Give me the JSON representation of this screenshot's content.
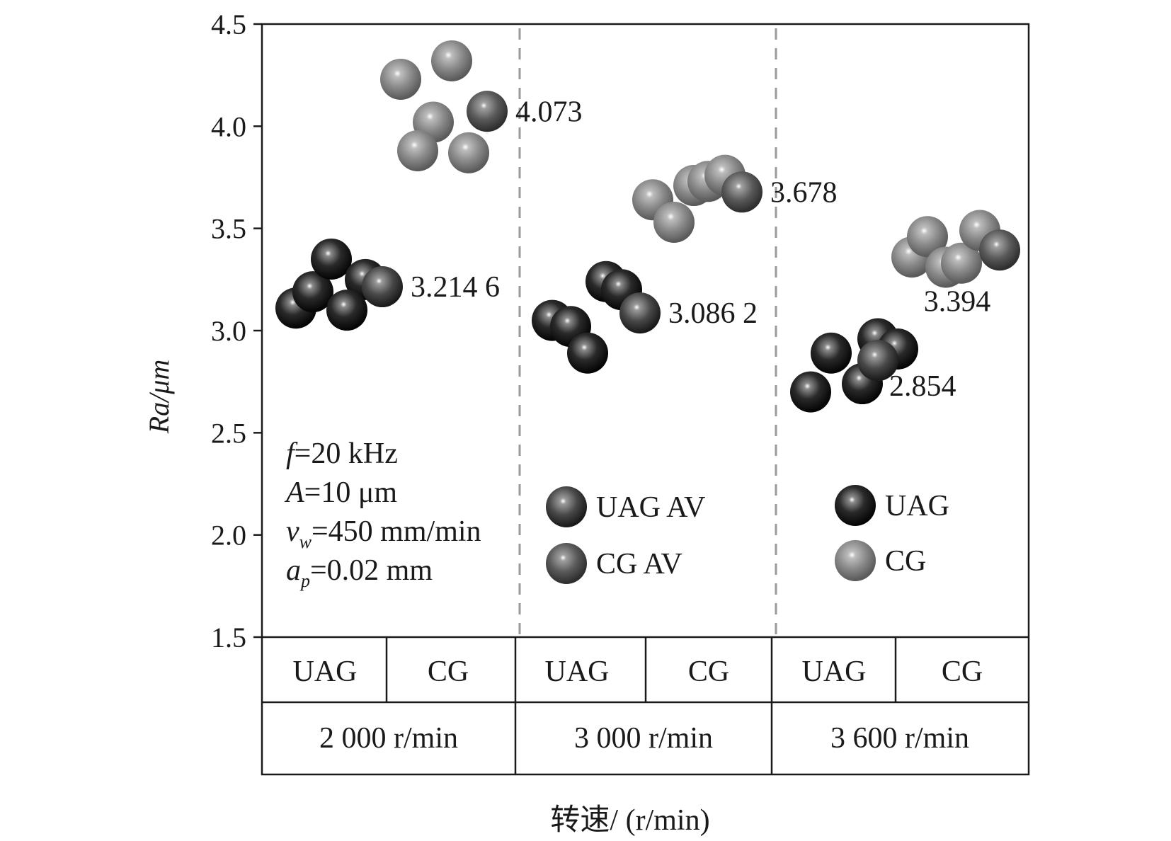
{
  "chart_data": {
    "type": "scatter",
    "ylabel": "Ra/μm",
    "xlabel": "转速/ (r/min)",
    "ylim": [
      1.5,
      4.5
    ],
    "yticks": [
      "4.5",
      "4.0",
      "3.5",
      "3.0",
      "2.5",
      "2.0",
      "1.5"
    ],
    "ytick_values": [
      4.5,
      4.0,
      3.5,
      3.0,
      2.5,
      2.0,
      1.5
    ],
    "grid": false,
    "groups": [
      {
        "speed": "2 000 r/min",
        "methods": [
          {
            "method": "UAG",
            "average_label": "3.214 6",
            "average": 3.2146,
            "points": [
              3.11,
              3.19,
              3.35,
              3.25,
              3.1
            ]
          },
          {
            "method": "CG",
            "average_label": "4.073",
            "average": 4.073,
            "points": [
              4.23,
              4.32,
              4.02,
              3.88,
              3.87
            ]
          }
        ]
      },
      {
        "speed": "3 000 r/min",
        "methods": [
          {
            "method": "UAG",
            "average_label": "3.086 2",
            "average": 3.0862,
            "points": [
              3.05,
              3.02,
              2.89,
              3.24,
              3.2
            ]
          },
          {
            "method": "CG",
            "average_label": "3.678",
            "average": 3.678,
            "points": [
              3.64,
              3.53,
              3.71,
              3.73,
              3.76
            ]
          }
        ]
      },
      {
        "speed": "3 600 r/min",
        "methods": [
          {
            "method": "UAG",
            "average_label": "2.854",
            "average": 2.854,
            "points": [
              2.7,
              2.74,
              2.89,
              2.96,
              2.91
            ]
          },
          {
            "method": "CG",
            "average_label": "3.394",
            "average": 3.394,
            "points": [
              3.36,
              3.46,
              3.31,
              3.33,
              3.49
            ]
          }
        ]
      }
    ],
    "conditions": [
      {
        "var": "f",
        "sub": "",
        "rest": "=20 kHz"
      },
      {
        "var": "A",
        "sub": "",
        "rest": "=10 μm"
      },
      {
        "var": "v",
        "sub": "w",
        "rest": "=450 mm/min"
      },
      {
        "var": "a",
        "sub": "p",
        "rest": "=0.02 mm"
      }
    ],
    "legend_average": [
      {
        "label": "UAG  AV",
        "kind": "uag_av"
      },
      {
        "label": "CG  AV",
        "kind": "cg_av"
      }
    ],
    "legend_points": [
      {
        "label": "UAG",
        "kind": "uag"
      },
      {
        "label": "CG",
        "kind": "cg"
      }
    ],
    "colors": {
      "uag": "#111111",
      "cg": "#7a7a7a",
      "uag_av": "#333333",
      "cg_av": "#4a4a4a",
      "frame": "#1a1a1a",
      "divider": "#9a9a9a"
    }
  }
}
